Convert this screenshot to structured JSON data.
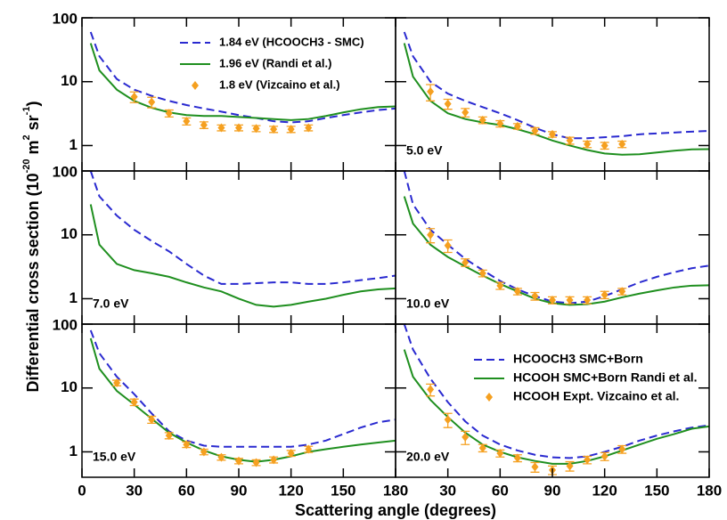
{
  "xlabel": "Scattering angle (degrees)",
  "ylabel": [
    "Differential cross section (10",
    "-20",
    " m",
    "2",
    " sr",
    "-1",
    ")"
  ],
  "chart_data": [
    {
      "type": "line",
      "log_y": true,
      "xlim": [
        0,
        180
      ],
      "xticks": [
        0,
        30,
        60,
        90,
        120,
        150,
        180
      ],
      "ylim": [
        0.4,
        100
      ],
      "yticks": [
        1,
        10,
        100
      ],
      "legend": "top",
      "series": [
        {
          "name": "1.84 eV (HCOOCH3 - SMC)",
          "color": "#2a2ad0",
          "style": "dashed",
          "x": [
            5,
            10,
            20,
            30,
            40,
            50,
            60,
            70,
            80,
            90,
            100,
            110,
            120,
            130,
            140,
            150,
            160,
            170,
            180
          ],
          "values": [
            60,
            25,
            11,
            7.5,
            6,
            5,
            4.3,
            3.8,
            3.4,
            3.0,
            2.7,
            2.4,
            2.3,
            2.4,
            2.7,
            3.0,
            3.3,
            3.6,
            3.8
          ]
        },
        {
          "name": "1.96 eV (Randi et al.)",
          "color": "#1f8f1f",
          "style": "solid",
          "x": [
            5,
            10,
            20,
            30,
            40,
            50,
            60,
            70,
            80,
            90,
            100,
            110,
            120,
            130,
            140,
            150,
            160,
            170,
            180
          ],
          "values": [
            40,
            15,
            7.5,
            5,
            3.9,
            3.3,
            3.0,
            2.9,
            2.9,
            2.8,
            2.7,
            2.6,
            2.5,
            2.6,
            2.9,
            3.3,
            3.7,
            4.0,
            4.1
          ]
        },
        {
          "name": "1.8 eV (Vizcaino et al.)",
          "color": "#f5a020",
          "style": "points",
          "x": [
            30,
            40,
            50,
            60,
            70,
            80,
            90,
            100,
            110,
            120,
            130
          ],
          "values": [
            5.8,
            4.8,
            3.2,
            2.4,
            2.1,
            1.9,
            1.9,
            1.85,
            1.8,
            1.8,
            1.9
          ],
          "error": [
            1.1,
            0.9,
            0.4,
            0.3,
            0.25,
            0.2,
            0.2,
            0.2,
            0.2,
            0.2,
            0.2
          ]
        }
      ]
    },
    {
      "type": "line",
      "log_y": true,
      "label": "5.0 eV",
      "xlim": [
        0,
        180
      ],
      "xticks": [
        0,
        30,
        60,
        90,
        120,
        150,
        180
      ],
      "ylim": [
        0.4,
        100
      ],
      "yticks": [
        1,
        10,
        100
      ],
      "series": [
        {
          "color": "#2a2ad0",
          "style": "dashed",
          "x": [
            5,
            10,
            20,
            30,
            40,
            50,
            60,
            70,
            80,
            90,
            100,
            110,
            120,
            130,
            140,
            150,
            160,
            170,
            180
          ],
          "values": [
            60,
            25,
            10,
            6.5,
            5,
            4,
            3.2,
            2.5,
            1.9,
            1.5,
            1.3,
            1.3,
            1.35,
            1.4,
            1.5,
            1.55,
            1.6,
            1.65,
            1.7
          ]
        },
        {
          "color": "#1f8f1f",
          "style": "solid",
          "x": [
            5,
            10,
            20,
            30,
            40,
            50,
            60,
            70,
            80,
            90,
            100,
            110,
            120,
            130,
            140,
            150,
            160,
            170,
            180
          ],
          "values": [
            40,
            12,
            5,
            3.2,
            2.6,
            2.3,
            2.1,
            1.8,
            1.5,
            1.2,
            1.0,
            0.85,
            0.75,
            0.72,
            0.73,
            0.78,
            0.83,
            0.87,
            0.88
          ]
        },
        {
          "color": "#f5a020",
          "style": "points",
          "x": [
            20,
            30,
            40,
            50,
            60,
            70,
            80,
            90,
            100,
            110,
            120,
            130
          ],
          "values": [
            7.0,
            4.5,
            3.3,
            2.5,
            2.2,
            2.0,
            1.7,
            1.5,
            1.2,
            1.05,
            1.0,
            1.05
          ],
          "error": [
            2.0,
            0.8,
            0.5,
            0.3,
            0.25,
            0.2,
            0.2,
            0.15,
            0.15,
            0.12,
            0.12,
            0.12
          ]
        }
      ]
    },
    {
      "type": "line",
      "log_y": true,
      "label": "7.0 eV",
      "xlim": [
        0,
        180
      ],
      "xticks": [
        0,
        30,
        60,
        90,
        120,
        150,
        180
      ],
      "ylim": [
        0.4,
        100
      ],
      "yticks": [
        1,
        10,
        100
      ],
      "series": [
        {
          "color": "#2a2ad0",
          "style": "dashed",
          "x": [
            5,
            10,
            20,
            30,
            40,
            50,
            60,
            70,
            80,
            90,
            100,
            110,
            120,
            130,
            140,
            150,
            160,
            170,
            180
          ],
          "values": [
            100,
            40,
            20,
            12,
            8,
            5.5,
            3.5,
            2.3,
            1.7,
            1.7,
            1.75,
            1.8,
            1.8,
            1.7,
            1.7,
            1.8,
            1.95,
            2.1,
            2.3
          ]
        },
        {
          "color": "#1f8f1f",
          "style": "solid",
          "x": [
            5,
            10,
            20,
            30,
            40,
            50,
            60,
            70,
            80,
            90,
            100,
            110,
            120,
            130,
            140,
            150,
            160,
            170,
            180
          ],
          "values": [
            30,
            7,
            3.5,
            2.8,
            2.5,
            2.2,
            1.8,
            1.5,
            1.3,
            1.0,
            0.8,
            0.75,
            0.8,
            0.9,
            1.0,
            1.15,
            1.3,
            1.4,
            1.45
          ]
        }
      ]
    },
    {
      "type": "line",
      "log_y": true,
      "label": "10.0 eV",
      "xlim": [
        0,
        180
      ],
      "xticks": [
        0,
        30,
        60,
        90,
        120,
        150,
        180
      ],
      "ylim": [
        0.4,
        100
      ],
      "yticks": [
        1,
        10,
        100
      ],
      "series": [
        {
          "color": "#2a2ad0",
          "style": "dashed",
          "x": [
            5,
            10,
            20,
            30,
            40,
            50,
            60,
            70,
            80,
            90,
            100,
            110,
            120,
            130,
            140,
            150,
            160,
            170,
            180
          ],
          "values": [
            100,
            30,
            12,
            7,
            4.2,
            2.8,
            1.9,
            1.4,
            1.1,
            0.9,
            0.85,
            0.9,
            1.1,
            1.4,
            1.8,
            2.2,
            2.6,
            3.0,
            3.3
          ]
        },
        {
          "color": "#1f8f1f",
          "style": "solid",
          "x": [
            5,
            10,
            20,
            30,
            40,
            50,
            60,
            70,
            80,
            90,
            100,
            110,
            120,
            130,
            140,
            150,
            160,
            170,
            180
          ],
          "values": [
            40,
            15,
            7,
            4.5,
            3.2,
            2.3,
            1.7,
            1.3,
            1.0,
            0.85,
            0.8,
            0.82,
            0.9,
            1.05,
            1.2,
            1.35,
            1.5,
            1.6,
            1.62
          ]
        },
        {
          "color": "#f5a020",
          "style": "points",
          "x": [
            20,
            30,
            40,
            50,
            60,
            70,
            80,
            90,
            100,
            110,
            120,
            130
          ],
          "values": [
            10,
            6.8,
            3.7,
            2.5,
            1.6,
            1.3,
            1.1,
            0.95,
            0.95,
            0.95,
            1.15,
            1.3
          ],
          "error": [
            2.5,
            1.5,
            0.5,
            0.3,
            0.2,
            0.15,
            0.15,
            0.12,
            0.12,
            0.12,
            0.15,
            0.15
          ]
        }
      ]
    },
    {
      "type": "line",
      "log_y": true,
      "label": "15.0 eV",
      "xlim": [
        0,
        180
      ],
      "xticks": [
        0,
        30,
        60,
        90,
        120,
        150,
        180
      ],
      "ylim": [
        0.4,
        100
      ],
      "yticks": [
        1,
        10,
        100
      ],
      "series": [
        {
          "color": "#2a2ad0",
          "style": "dashed",
          "x": [
            5,
            10,
            20,
            30,
            40,
            50,
            60,
            70,
            80,
            90,
            100,
            110,
            120,
            130,
            140,
            150,
            160,
            170,
            180
          ],
          "values": [
            80,
            35,
            15,
            8,
            4,
            2.1,
            1.5,
            1.25,
            1.2,
            1.2,
            1.2,
            1.2,
            1.2,
            1.3,
            1.5,
            1.9,
            2.4,
            2.9,
            3.2
          ]
        },
        {
          "color": "#1f8f1f",
          "style": "solid",
          "x": [
            5,
            10,
            20,
            30,
            40,
            50,
            60,
            70,
            80,
            90,
            100,
            110,
            120,
            130,
            140,
            150,
            160,
            170,
            180
          ],
          "values": [
            60,
            20,
            9,
            5.5,
            3.3,
            2.0,
            1.4,
            1.05,
            0.85,
            0.75,
            0.7,
            0.75,
            0.85,
            1.0,
            1.1,
            1.2,
            1.3,
            1.4,
            1.5
          ]
        },
        {
          "color": "#f5a020",
          "style": "points",
          "x": [
            20,
            30,
            40,
            50,
            60,
            70,
            80,
            90,
            100,
            110,
            120,
            130
          ],
          "values": [
            12,
            6,
            3.2,
            1.8,
            1.3,
            1.0,
            0.82,
            0.72,
            0.68,
            0.75,
            0.95,
            1.1
          ],
          "error": [
            1.2,
            0.7,
            0.4,
            0.2,
            0.13,
            0.1,
            0.08,
            0.07,
            0.07,
            0.08,
            0.1,
            0.12
          ]
        }
      ]
    },
    {
      "type": "line",
      "log_y": true,
      "label": "20.0 eV",
      "xlim": [
        0,
        180
      ],
      "xticks": [
        0,
        30,
        60,
        90,
        120,
        150,
        180
      ],
      "ylim": [
        0.4,
        100
      ],
      "yticks": [
        1,
        10,
        100
      ],
      "legend": "top",
      "series": [
        {
          "name": "HCOOCH3 SMC+Born",
          "color": "#2a2ad0",
          "style": "dashed",
          "x": [
            5,
            10,
            20,
            30,
            40,
            50,
            60,
            70,
            80,
            90,
            100,
            110,
            120,
            130,
            140,
            150,
            160,
            170,
            180
          ],
          "values": [
            100,
            40,
            14,
            6,
            3,
            1.8,
            1.3,
            1.05,
            0.9,
            0.82,
            0.8,
            0.85,
            1.0,
            1.2,
            1.5,
            1.8,
            2.1,
            2.4,
            2.6
          ]
        },
        {
          "name": "HCOOH SMC+Born Randi et al.",
          "color": "#1f8f1f",
          "style": "solid",
          "x": [
            5,
            10,
            20,
            30,
            40,
            50,
            60,
            70,
            80,
            90,
            100,
            110,
            120,
            130,
            140,
            150,
            160,
            170,
            180
          ],
          "values": [
            40,
            15,
            6.5,
            3.5,
            2.0,
            1.3,
            1.0,
            0.82,
            0.72,
            0.65,
            0.65,
            0.72,
            0.85,
            1.05,
            1.3,
            1.6,
            1.9,
            2.3,
            2.5
          ]
        },
        {
          "name": "HCOOH Expt. Vizcaino et al.",
          "color": "#f5a020",
          "style": "points",
          "x": [
            20,
            30,
            40,
            50,
            60,
            70,
            80,
            90,
            100,
            110,
            120,
            130
          ],
          "values": [
            9.5,
            3.2,
            1.7,
            1.15,
            0.95,
            0.8,
            0.58,
            0.52,
            0.6,
            0.75,
            0.85,
            1.1
          ],
          "error": [
            2,
            0.8,
            0.4,
            0.15,
            0.12,
            0.1,
            0.1,
            0.08,
            0.1,
            0.1,
            0.12,
            0.15
          ]
        }
      ]
    }
  ]
}
